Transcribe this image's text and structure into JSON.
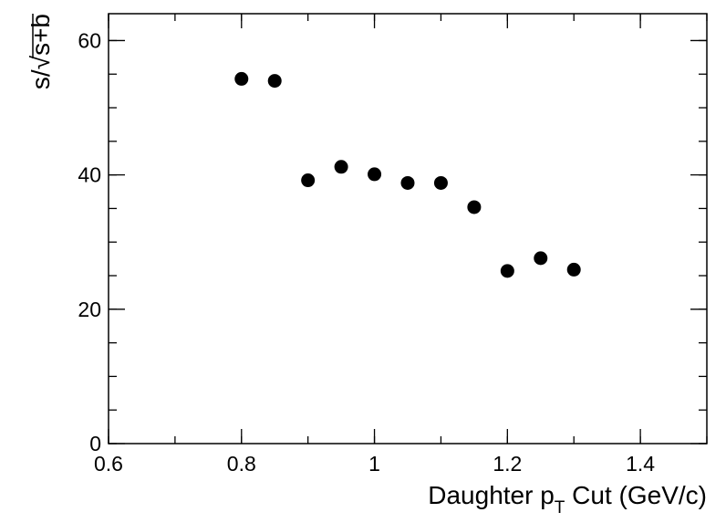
{
  "chart_data": {
    "type": "scatter",
    "x_label": [
      "Daughter p",
      "T",
      " Cut (GeV/c)"
    ],
    "y_label": "s/√s+b",
    "x": [
      0.8,
      0.85,
      0.9,
      0.95,
      1.0,
      1.05,
      1.1,
      1.15,
      1.2,
      1.25,
      1.3
    ],
    "values": [
      54.3,
      54.0,
      39.2,
      41.2,
      40.1,
      38.8,
      38.8,
      35.2,
      25.7,
      27.6,
      25.9
    ],
    "color": "#000000",
    "xlim": [
      0.6,
      1.5
    ],
    "xticks": [
      0.6,
      0.8,
      1,
      1.2,
      1.4
    ],
    "ylim": [
      0,
      64
    ],
    "yticks": [
      0,
      20,
      40,
      60
    ]
  }
}
